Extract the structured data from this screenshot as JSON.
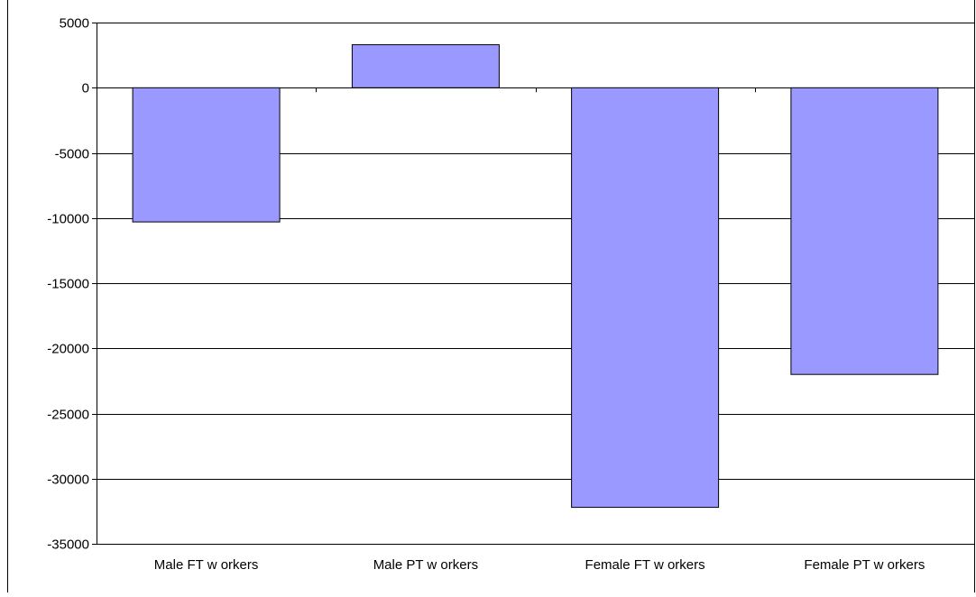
{
  "chart_data": {
    "type": "bar",
    "categories": [
      "Male FT w orkers",
      "Male PT w orkers",
      "Female FT w orkers",
      "Female PT w orkers"
    ],
    "values": [
      -10300,
      3300,
      -32200,
      -22000
    ],
    "ylim": [
      -35000,
      5000
    ],
    "yticks": [
      "5000",
      "0",
      "-5000",
      "-10000",
      "-15000",
      "-20000",
      "-25000",
      "-30000",
      "-35000"
    ],
    "grid": true,
    "legend": "none",
    "colors": {
      "bar": "#9999ff",
      "bar_edge": "#000000",
      "grid": "#000000",
      "background": "#ffffff"
    }
  }
}
